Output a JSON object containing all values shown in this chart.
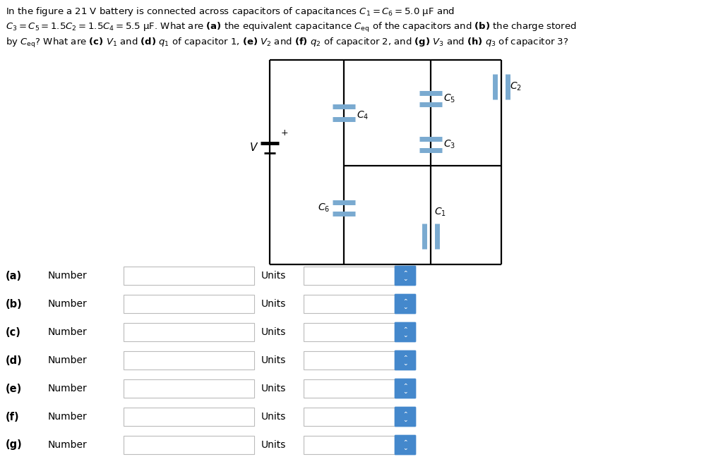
{
  "bg_color": "#ffffff",
  "cap_color": "#7aaad0",
  "circ_color": "#000000",
  "labels": [
    "(a)",
    "(b)",
    "(c)",
    "(d)",
    "(e)",
    "(f)",
    "(g)"
  ],
  "line1": "In the figure a 21 V battery is connected across capacitors of capacitances $C_1 = C_6 = 5.0$ μF and",
  "line2": "$C_3 = C_5 = 1.5C_2 = 1.5C_4 = 5.5$ μF. What are $\\mathbf{(a)}$ the equivalent capacitance $C_{\\mathrm{eq}}$ of the capacitors and $\\mathbf{(b)}$ the charge stored",
  "line3": "by $C_{\\mathrm{eq}}$? What are $\\mathbf{(c)}$ $V_1$ and $\\mathbf{(d)}$ $q_1$ of capacitor 1, $\\mathbf{(e)}$ $V_2$ and $\\mathbf{(f)}$ $q_2$ of capacitor 2, and $\\mathbf{(g)}$ $V_3$ and $\\mathbf{(h)}$ $q_3$ of capacitor 3?",
  "fig_w": 10.24,
  "fig_h": 6.58,
  "dpi": 100
}
